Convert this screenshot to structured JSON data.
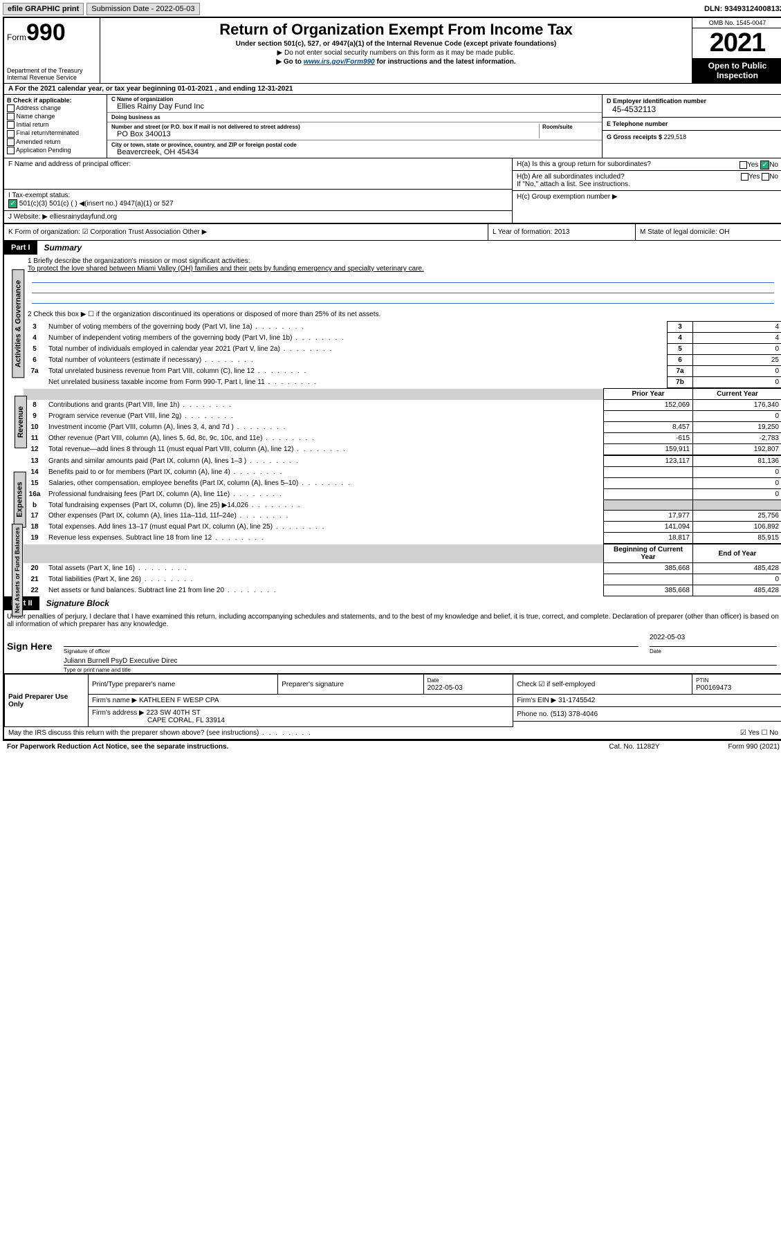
{
  "topbar": {
    "efile": "efile GRAPHIC print",
    "submission_label": "Submission Date - 2022-05-03",
    "dln": "DLN: 93493124008132"
  },
  "header": {
    "form_prefix": "Form",
    "form_no": "990",
    "dept": "Department of the Treasury",
    "irs": "Internal Revenue Service",
    "title": "Return of Organization Exempt From Income Tax",
    "sub1": "Under section 501(c), 527, or 4947(a)(1) of the Internal Revenue Code (except private foundations)",
    "sub2": "▶ Do not enter social security numbers on this form as it may be made public.",
    "sub3_pre": "▶ Go to ",
    "sub3_link": "www.irs.gov/Form990",
    "sub3_post": " for instructions and the latest information.",
    "omb": "OMB No. 1545-0047",
    "year": "2021",
    "open": "Open to Public Inspection"
  },
  "row_a": "A For the 2021 calendar year, or tax year beginning 01-01-2021    , and ending 12-31-2021",
  "col_b": {
    "hdr": "B Check if applicable:",
    "items": [
      "Address change",
      "Name change",
      "Initial return",
      "Final return/terminated",
      "Amended return",
      "Application Pending"
    ]
  },
  "col_c": {
    "name_lbl": "C Name of organization",
    "name": "Ellies Rainy Day Fund Inc",
    "dba_lbl": "Doing business as",
    "dba": "",
    "addr_lbl": "Number and street (or P.O. box if mail is not delivered to street address)",
    "room_lbl": "Room/suite",
    "addr": "PO Box 340013",
    "city_lbl": "City or town, state or province, country, and ZIP or foreign postal code",
    "city": "Beavercreek, OH  45434"
  },
  "col_d": {
    "ein_lbl": "D Employer identification number",
    "ein": "45-4532113",
    "tel_lbl": "E Telephone number",
    "tel": "",
    "gross_lbl": "G Gross receipts $",
    "gross": "229,518"
  },
  "row_f": {
    "f": "F  Name and address of principal officer:",
    "i": "I    Tax-exempt status:",
    "i_opts": "501(c)(3)        501(c) (  ) ◀(insert no.)        4947(a)(1) or      527",
    "j": "J   Website: ▶   elliesrainydayfund.org"
  },
  "row_h": {
    "ha": "H(a)  Is this a group return for subordinates?",
    "ha_ans": "Yes ☑No",
    "hb": "H(b)  Are all subordinates included?",
    "hb_ans": "Yes    No",
    "hb_note": "If \"No,\" attach a list. See instructions.",
    "hc": "H(c)  Group exemption number ▶"
  },
  "row_k": {
    "k": "K Form of organization:  ☑ Corporation    Trust    Association    Other ▶",
    "l": "L Year of formation: 2013",
    "m": "M State of legal domicile: OH"
  },
  "part1": {
    "num": "Part I",
    "title": "Summary"
  },
  "summary": {
    "l1a": "1  Briefly describe the organization's mission or most significant activities:",
    "l1b": "To protect the love shared between Miami Valley (OH) families and their pets by funding emergency and specialty veterinary care.",
    "l2": "2   Check this box ▶ ☐  if the organization discontinued its operations or disposed of more than 25% of its net assets.",
    "rows_gov": [
      {
        "n": "3",
        "d": "Number of voting members of the governing body (Part VI, line 1a)",
        "b": "3",
        "v": "4"
      },
      {
        "n": "4",
        "d": "Number of independent voting members of the governing body (Part VI, line 1b)",
        "b": "4",
        "v": "4"
      },
      {
        "n": "5",
        "d": "Total number of individuals employed in calendar year 2021 (Part V, line 2a)",
        "b": "5",
        "v": "0"
      },
      {
        "n": "6",
        "d": "Total number of volunteers (estimate if necessary)",
        "b": "6",
        "v": "25"
      },
      {
        "n": "7a",
        "d": "Total unrelated business revenue from Part VIII, column (C), line 12",
        "b": "7a",
        "v": "0"
      },
      {
        "n": "",
        "d": "Net unrelated business taxable income from Form 990-T, Part I, line 11",
        "b": "7b",
        "v": "0"
      }
    ],
    "hdr_prior": "Prior Year",
    "hdr_curr": "Current Year",
    "rows_rev": [
      {
        "n": "8",
        "d": "Contributions and grants (Part VIII, line 1h)",
        "p": "152,069",
        "c": "176,340"
      },
      {
        "n": "9",
        "d": "Program service revenue (Part VIII, line 2g)",
        "p": "",
        "c": "0"
      },
      {
        "n": "10",
        "d": "Investment income (Part VIII, column (A), lines 3, 4, and 7d )",
        "p": "8,457",
        "c": "19,250"
      },
      {
        "n": "11",
        "d": "Other revenue (Part VIII, column (A), lines 5, 6d, 8c, 9c, 10c, and 11e)",
        "p": "-615",
        "c": "-2,783"
      },
      {
        "n": "12",
        "d": "Total revenue—add lines 8 through 11 (must equal Part VIII, column (A), line 12)",
        "p": "159,911",
        "c": "192,807"
      }
    ],
    "rows_exp": [
      {
        "n": "13",
        "d": "Grants and similar amounts paid (Part IX, column (A), lines 1–3 )",
        "p": "123,117",
        "c": "81,136"
      },
      {
        "n": "14",
        "d": "Benefits paid to or for members (Part IX, column (A), line 4)",
        "p": "",
        "c": "0"
      },
      {
        "n": "15",
        "d": "Salaries, other compensation, employee benefits (Part IX, column (A), lines 5–10)",
        "p": "",
        "c": "0"
      },
      {
        "n": "16a",
        "d": "Professional fundraising fees (Part IX, column (A), line 11e)",
        "p": "",
        "c": "0"
      },
      {
        "n": "b",
        "d": "Total fundraising expenses (Part IX, column (D), line 25) ▶14,026",
        "p": "SHADE",
        "c": "SHADE"
      },
      {
        "n": "17",
        "d": "Other expenses (Part IX, column (A), lines 11a–11d, 11f–24e)",
        "p": "17,977",
        "c": "25,756"
      },
      {
        "n": "18",
        "d": "Total expenses. Add lines 13–17 (must equal Part IX, column (A), line 25)",
        "p": "141,094",
        "c": "106,892"
      },
      {
        "n": "19",
        "d": "Revenue less expenses. Subtract line 18 from line 12",
        "p": "18,817",
        "c": "85,915"
      }
    ],
    "hdr_beg": "Beginning of Current Year",
    "hdr_end": "End of Year",
    "rows_net": [
      {
        "n": "20",
        "d": "Total assets (Part X, line 16)",
        "p": "385,668",
        "c": "485,428"
      },
      {
        "n": "21",
        "d": "Total liabilities (Part X, line 26)",
        "p": "",
        "c": "0"
      },
      {
        "n": "22",
        "d": "Net assets or fund balances. Subtract line 21 from line 20",
        "p": "385,668",
        "c": "485,428"
      }
    ]
  },
  "vlabels": {
    "gov": "Activities & Governance",
    "rev": "Revenue",
    "exp": "Expenses",
    "net": "Net Assets or Fund Balances"
  },
  "part2": {
    "num": "Part II",
    "title": "Signature Block"
  },
  "penalties": "Under penalties of perjury, I declare that I have examined this return, including accompanying schedules and statements, and to the best of my knowledge and belief, it is true, correct, and complete. Declaration of preparer (other than officer) is based on all information of which preparer has any knowledge.",
  "sign": {
    "here": "Sign Here",
    "sig_lbl": "Signature of officer",
    "date": "2022-05-03",
    "date_lbl": "Date",
    "name": "Juliann Burnell PsyD  Executive Direc",
    "name_lbl": "Type or print name and title"
  },
  "paid": {
    "hdr": "Paid Preparer Use Only",
    "h1": "Print/Type preparer's name",
    "h2": "Preparer's signature",
    "h3": "Date",
    "h3v": "2022-05-03",
    "h4": "Check ☑ if self-employed",
    "h5": "PTIN",
    "h5v": "P00169473",
    "firm_lbl": "Firm's name   ▶",
    "firm": "KATHLEEN F WESP CPA",
    "ein_lbl": "Firm's EIN ▶",
    "ein": "31-1745542",
    "addr_lbl": "Firm's address ▶",
    "addr1": "223 SW 40TH ST",
    "addr2": "CAPE CORAL, FL  33914",
    "phone_lbl": "Phone no.",
    "phone": "(513) 378-4046"
  },
  "may_irs": "May the IRS discuss this return with the preparer shown above? (see instructions)",
  "may_ans": "☑ Yes    ☐ No",
  "footer": {
    "f1": "For Paperwork Reduction Act Notice, see the separate instructions.",
    "f2": "Cat. No. 11282Y",
    "f3": "Form 990 (2021)"
  }
}
